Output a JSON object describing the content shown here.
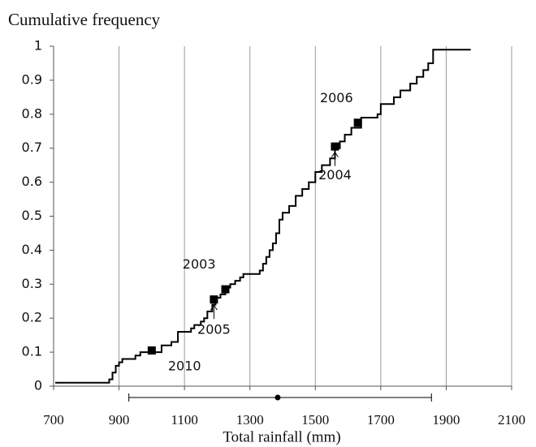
{
  "chart_data": {
    "type": "step",
    "y_label": "Cumulative frequency",
    "x_label": "Total rainfall (mm)",
    "color": "#000000",
    "grid": true,
    "x": [
      705,
      870,
      880,
      890,
      900,
      910,
      950,
      965,
      1030,
      1060,
      1080,
      1120,
      1130,
      1150,
      1160,
      1170,
      1185,
      1195,
      1210,
      1225,
      1240,
      1255,
      1270,
      1280,
      1330,
      1340,
      1350,
      1360,
      1370,
      1380,
      1390,
      1400,
      1420,
      1440,
      1460,
      1480,
      1500,
      1520,
      1545,
      1560,
      1575,
      1590,
      1610,
      1640,
      1690,
      1700,
      1740,
      1760,
      1790,
      1810,
      1830,
      1845,
      1860,
      1975
    ],
    "values": [
      0.01,
      0.02,
      0.04,
      0.06,
      0.07,
      0.08,
      0.09,
      0.1,
      0.12,
      0.13,
      0.16,
      0.17,
      0.18,
      0.19,
      0.2,
      0.22,
      0.24,
      0.26,
      0.27,
      0.29,
      0.3,
      0.31,
      0.32,
      0.33,
      0.34,
      0.36,
      0.38,
      0.4,
      0.42,
      0.45,
      0.49,
      0.51,
      0.53,
      0.56,
      0.58,
      0.6,
      0.63,
      0.65,
      0.67,
      0.7,
      0.72,
      0.74,
      0.76,
      0.79,
      0.8,
      0.83,
      0.85,
      0.87,
      0.89,
      0.91,
      0.93,
      0.95,
      0.99,
      0.99
    ],
    "markers": [
      {
        "label": "2010",
        "x": 1000,
        "y": 0.105
      },
      {
        "label": "2005",
        "x": 1190,
        "y": 0.255
      },
      {
        "label": "2003",
        "x": 1225,
        "y": 0.285
      },
      {
        "label": "2004",
        "x": 1560,
        "y": 0.705
      },
      {
        "label": "2006",
        "x": 1630,
        "y": 0.775
      }
    ],
    "range": {
      "low": 930,
      "high": 1855,
      "center": 1385
    },
    "xlim": [
      700,
      2100
    ],
    "ylim": [
      0,
      1
    ],
    "xticks": [
      700,
      900,
      1100,
      1300,
      1500,
      1700,
      1900,
      2100
    ],
    "yticks": [
      0,
      0.1,
      0.2,
      0.3,
      0.4,
      0.5,
      0.6,
      0.7,
      0.8,
      0.9,
      1
    ]
  }
}
